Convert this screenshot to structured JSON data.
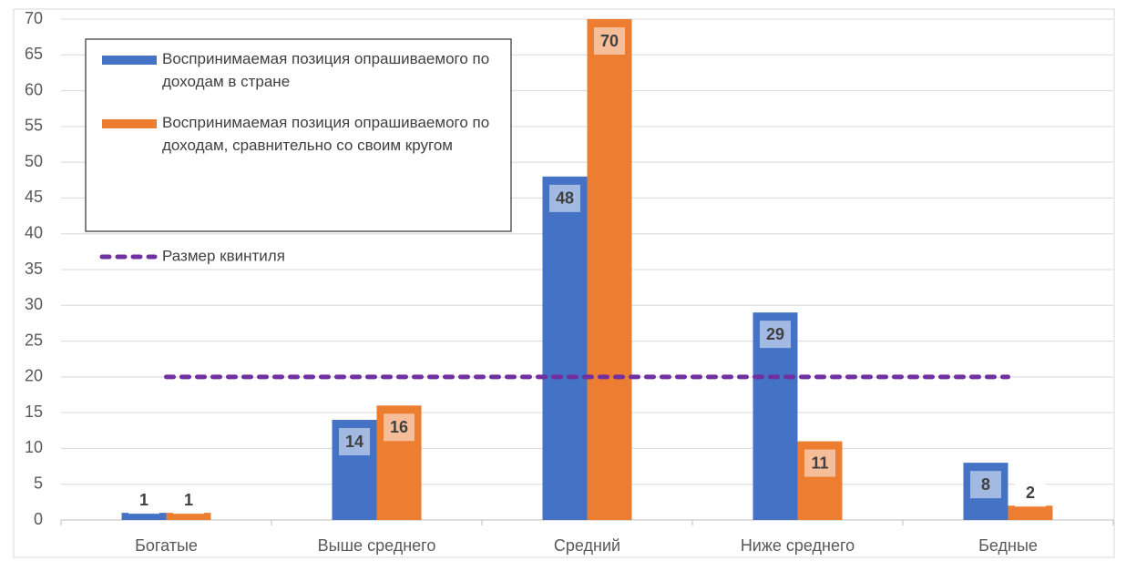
{
  "chart_data": {
    "type": "bar",
    "categories": [
      "Богатые",
      "Выше среднего",
      "Средний",
      "Ниже среднего",
      "Бедные"
    ],
    "series": [
      {
        "name": "Воспринимаемая позиция опрашиваемого по доходам в стране",
        "color": "#4472c4",
        "values": [
          1,
          14,
          48,
          29,
          8
        ]
      },
      {
        "name": "Воспринимаемая позиция опрашиваемого по доходам, сравнительно со своим кругом",
        "color": "#ed7d31",
        "values": [
          1,
          16,
          70,
          11,
          2
        ]
      },
      {
        "name": "Размер квинтиля",
        "color": "#7030a0",
        "type": "line",
        "values": [
          20,
          20,
          20,
          20,
          20
        ]
      }
    ],
    "ylim": [
      0,
      70
    ],
    "yticks": [
      0,
      5,
      10,
      15,
      20,
      25,
      30,
      35,
      40,
      45,
      50,
      55,
      60,
      65,
      70
    ],
    "grid": true,
    "legend": "upper left"
  }
}
